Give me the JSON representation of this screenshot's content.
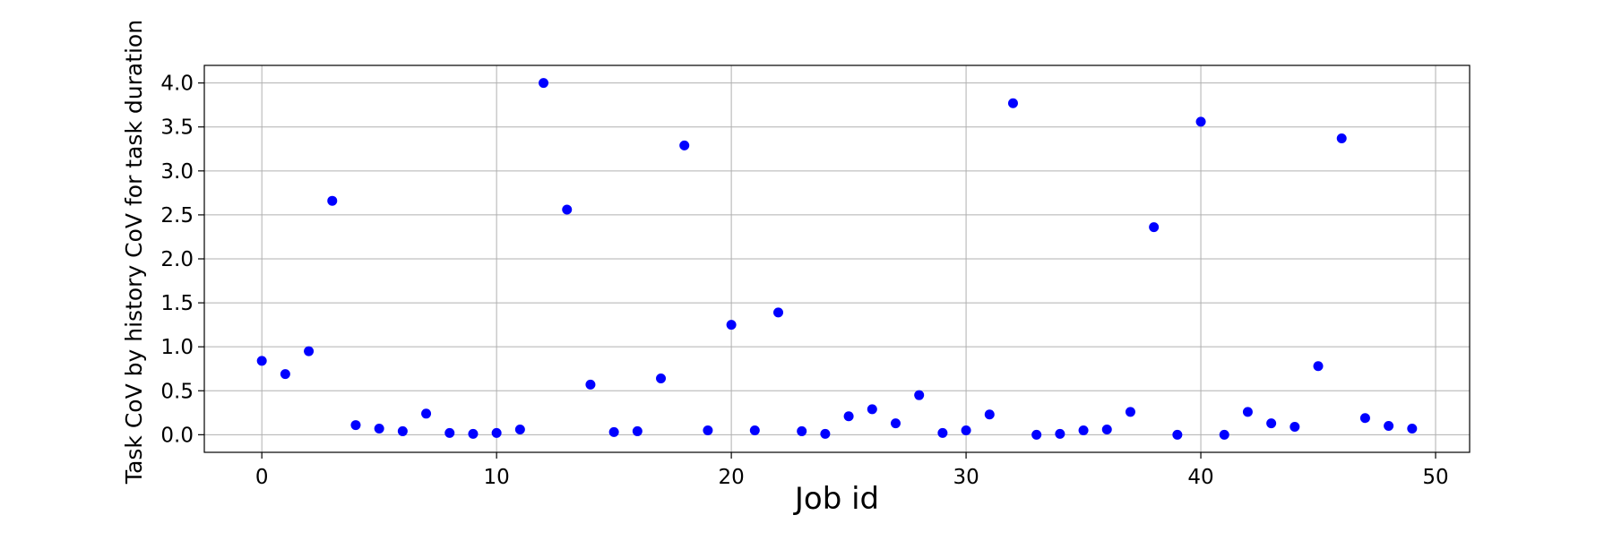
{
  "chart_data": {
    "type": "scatter",
    "title": "",
    "xlabel": "Job id",
    "ylabel": "Task CoV by history CoV for task duration",
    "xlim": [
      -2.45,
      51.45
    ],
    "ylim": [
      -0.2,
      4.2
    ],
    "x_ticks": [
      0,
      10,
      20,
      30,
      40,
      50
    ],
    "x_tick_labels": [
      "0",
      "10",
      "20",
      "30",
      "40",
      "50"
    ],
    "y_ticks": [
      0.0,
      0.5,
      1.0,
      1.5,
      2.0,
      2.5,
      3.0,
      3.5,
      4.0
    ],
    "y_tick_labels": [
      "0.0",
      "0.5",
      "1.0",
      "1.5",
      "2.0",
      "2.5",
      "3.0",
      "3.5",
      "4.0"
    ],
    "grid": true,
    "marker_color": "#0000ff",
    "series": [
      {
        "x": [
          0,
          1,
          2,
          3,
          4,
          5,
          6,
          7,
          8,
          9,
          10,
          11,
          12,
          13,
          14,
          15,
          16,
          17,
          18,
          19,
          20,
          21,
          22,
          23,
          24,
          25,
          26,
          27,
          28,
          29,
          30,
          31,
          32,
          33,
          34,
          35,
          36,
          37,
          38,
          39,
          40,
          41,
          42,
          43,
          44,
          45,
          46,
          47,
          48,
          49
        ],
        "y": [
          0.84,
          0.69,
          0.95,
          2.66,
          0.11,
          0.07,
          0.04,
          0.24,
          0.02,
          0.01,
          0.02,
          0.06,
          4.0,
          2.56,
          0.57,
          0.03,
          0.04,
          0.64,
          3.29,
          0.05,
          1.25,
          0.05,
          1.39,
          0.04,
          0.01,
          0.21,
          0.29,
          0.13,
          0.45,
          0.02,
          0.05,
          0.23,
          3.77,
          0.0,
          0.01,
          0.05,
          0.06,
          0.26,
          2.36,
          0.0,
          3.56,
          0.0,
          0.26,
          0.13,
          0.09,
          0.78,
          3.37,
          0.19,
          0.1,
          0.07
        ]
      }
    ]
  }
}
